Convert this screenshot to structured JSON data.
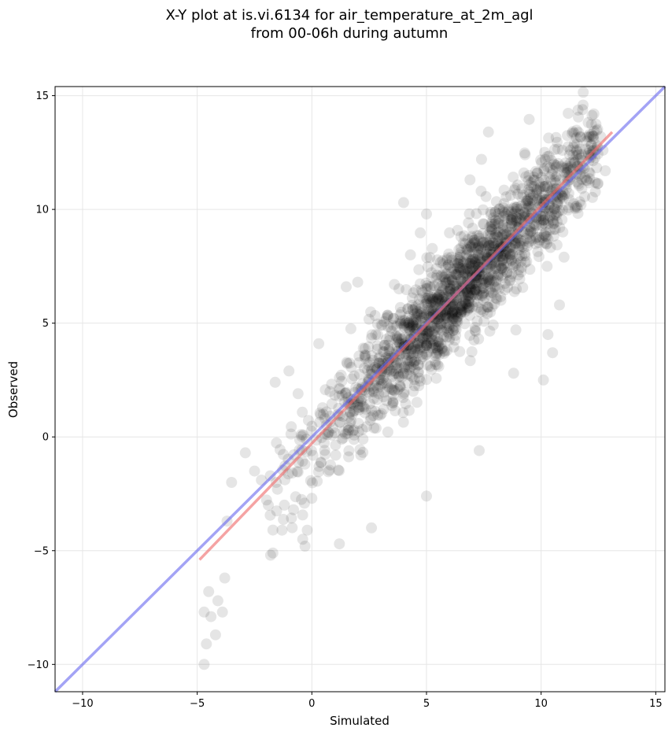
{
  "chart_data": {
    "type": "scatter",
    "title_line1": "X-Y plot at is.vi.6134 for air_temperature_at_2m_agl",
    "title_line2": "from 00-06h during autumn",
    "xlabel": "Simulated",
    "ylabel": "Observed",
    "xlim": [
      -11.2,
      15.4
    ],
    "ylim": [
      -11.2,
      15.4
    ],
    "xticks": [
      -10,
      -5,
      0,
      5,
      10,
      15
    ],
    "yticks": [
      -10,
      -5,
      0,
      5,
      10,
      15
    ],
    "xtick_labels": [
      "−10",
      "−5",
      "0",
      "5",
      "10",
      "15"
    ],
    "ytick_labels": [
      "−10",
      "−5",
      "0",
      "5",
      "10",
      "15"
    ],
    "grid": true,
    "colors": {
      "points": "#000000",
      "identity_line": "#6666ee",
      "fit_line": "#ee6666",
      "grid": "#e6e6e6"
    },
    "identity_line": {
      "x": [
        -11.2,
        15.4
      ],
      "y": [
        -11.2,
        15.4
      ]
    },
    "fit_line": {
      "x": [
        -4.9,
        13.1
      ],
      "y": [
        -5.4,
        13.4
      ]
    },
    "outlier_points": {
      "x": [
        -4.7,
        -4.2,
        -4.6,
        -3.9,
        -4.1,
        -4.5,
        -3.8,
        -4.4,
        -4.7,
        -3.5,
        -2.9,
        -2.5,
        -2.2,
        -1.9,
        -1.7,
        -1.5,
        -1.8,
        -1.3,
        -0.8,
        -0.4,
        -0.2,
        -0.3,
        0.0,
        -1.2,
        -1.6,
        1.2,
        2.6,
        5.0,
        4.0,
        7.3,
        8.8,
        10.1,
        10.3,
        10.8,
        11.0,
        10.5,
        8.9,
        9.5,
        11.6,
        12.3,
        12.6,
        7.7,
        7.4,
        4.3,
        3.6,
        2.0,
        1.5,
        5.0,
        6.9,
        9.3,
        12.7,
        12.8,
        -3.7,
        0.3,
        -1.0,
        -0.6
      ],
      "y": [
        -10.0,
        -8.7,
        -9.1,
        -7.7,
        -7.2,
        -6.8,
        -6.2,
        -7.9,
        -7.7,
        -2.0,
        -0.7,
        -1.5,
        -1.9,
        -3.0,
        -5.1,
        -2.3,
        -5.2,
        -4.1,
        -3.2,
        -4.5,
        -4.1,
        -4.8,
        -2.7,
        -3.0,
        2.4,
        -4.7,
        -4.0,
        -2.6,
        10.3,
        -0.6,
        2.8,
        2.5,
        4.5,
        5.8,
        7.9,
        3.7,
        4.7,
        9.6,
        11.9,
        14.2,
        13.2,
        13.4,
        12.2,
        8.0,
        6.7,
        6.8,
        6.6,
        9.8,
        11.3,
        12.4,
        12.6,
        11.7,
        -3.7,
        4.1,
        2.9,
        1.9
      ]
    }
  }
}
